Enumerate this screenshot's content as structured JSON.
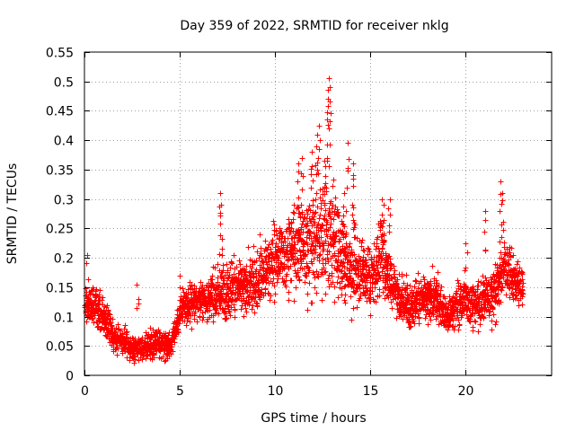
{
  "chart_data": {
    "type": "scatter",
    "title": "Day 359 of 2022, SRMTID for receiver nklg",
    "xlabel": "GPS time / hours",
    "ylabel": "SRMTID / TECUs",
    "xlim": [
      0,
      24.5
    ],
    "ylim": [
      0,
      0.55
    ],
    "x_ticks": [
      0,
      5,
      10,
      15,
      20
    ],
    "y_ticks": [
      0,
      0.05,
      0.1,
      0.15,
      0.2,
      0.25,
      0.3,
      0.35,
      0.4,
      0.45,
      0.5,
      0.55
    ],
    "x_tick_labels": [
      "0",
      "5",
      "10",
      "15",
      "20"
    ],
    "y_tick_labels": [
      "0",
      "0.05",
      "0.1",
      "0.15",
      "0.2",
      "0.25",
      "0.3",
      "0.35",
      "0.4",
      "0.45",
      "0.5",
      "0.55"
    ],
    "grid": true,
    "marker": "+",
    "color": "#ff0000",
    "series": [
      {
        "name": "SRMTID",
        "envelope": {
          "description": "approximate median and spread of SRMTID per 0.5 h, read from the plot",
          "x": [
            0,
            0.5,
            1,
            1.5,
            2,
            2.5,
            3,
            3.5,
            4,
            4.5,
            5,
            5.5,
            6,
            6.5,
            7,
            7.5,
            8,
            8.5,
            9,
            9.5,
            10,
            10.5,
            11,
            11.5,
            12,
            12.5,
            13,
            13.5,
            14,
            14.5,
            15,
            15.5,
            16,
            16.5,
            17,
            17.5,
            18,
            18.5,
            19,
            19.5,
            20,
            20.5,
            21,
            21.5,
            22,
            22.5,
            23
          ],
          "median": [
            0.12,
            0.12,
            0.1,
            0.07,
            0.06,
            0.045,
            0.05,
            0.05,
            0.055,
            0.05,
            0.11,
            0.12,
            0.13,
            0.13,
            0.14,
            0.15,
            0.15,
            0.15,
            0.16,
            0.18,
            0.2,
            0.21,
            0.22,
            0.22,
            0.23,
            0.24,
            0.23,
            0.2,
            0.19,
            0.18,
            0.16,
            0.2,
            0.17,
            0.13,
            0.12,
            0.13,
            0.13,
            0.13,
            0.1,
            0.12,
            0.13,
            0.12,
            0.13,
            0.14,
            0.19,
            0.16,
            0.15
          ],
          "spread": [
            0.03,
            0.025,
            0.025,
            0.02,
            0.02,
            0.015,
            0.015,
            0.02,
            0.02,
            0.015,
            0.025,
            0.025,
            0.025,
            0.03,
            0.04,
            0.04,
            0.035,
            0.035,
            0.04,
            0.045,
            0.05,
            0.05,
            0.06,
            0.07,
            0.08,
            0.09,
            0.08,
            0.06,
            0.06,
            0.05,
            0.04,
            0.05,
            0.04,
            0.035,
            0.03,
            0.03,
            0.03,
            0.03,
            0.025,
            0.03,
            0.03,
            0.03,
            0.035,
            0.04,
            0.04,
            0.03,
            0.025
          ]
        },
        "peaks": [
          {
            "x": 0.15,
            "y": 0.205
          },
          {
            "x": 2.75,
            "y": 0.155
          },
          {
            "x": 5.0,
            "y": 0.17
          },
          {
            "x": 7.1,
            "y": 0.31
          },
          {
            "x": 7.15,
            "y": 0.29
          },
          {
            "x": 9.2,
            "y": 0.24
          },
          {
            "x": 11.2,
            "y": 0.36
          },
          {
            "x": 11.4,
            "y": 0.37
          },
          {
            "x": 11.9,
            "y": 0.38
          },
          {
            "x": 12.2,
            "y": 0.41
          },
          {
            "x": 12.3,
            "y": 0.425
          },
          {
            "x": 12.6,
            "y": 0.365
          },
          {
            "x": 12.75,
            "y": 0.47
          },
          {
            "x": 12.8,
            "y": 0.505
          },
          {
            "x": 12.85,
            "y": 0.49
          },
          {
            "x": 13.6,
            "y": 0.31
          },
          {
            "x": 13.8,
            "y": 0.395
          },
          {
            "x": 14.1,
            "y": 0.36
          },
          {
            "x": 15.6,
            "y": 0.3
          },
          {
            "x": 15.7,
            "y": 0.29
          },
          {
            "x": 16.0,
            "y": 0.3
          },
          {
            "x": 20.0,
            "y": 0.225
          },
          {
            "x": 21.0,
            "y": 0.28
          },
          {
            "x": 21.8,
            "y": 0.33
          },
          {
            "x": 21.9,
            "y": 0.31
          }
        ]
      }
    ]
  }
}
